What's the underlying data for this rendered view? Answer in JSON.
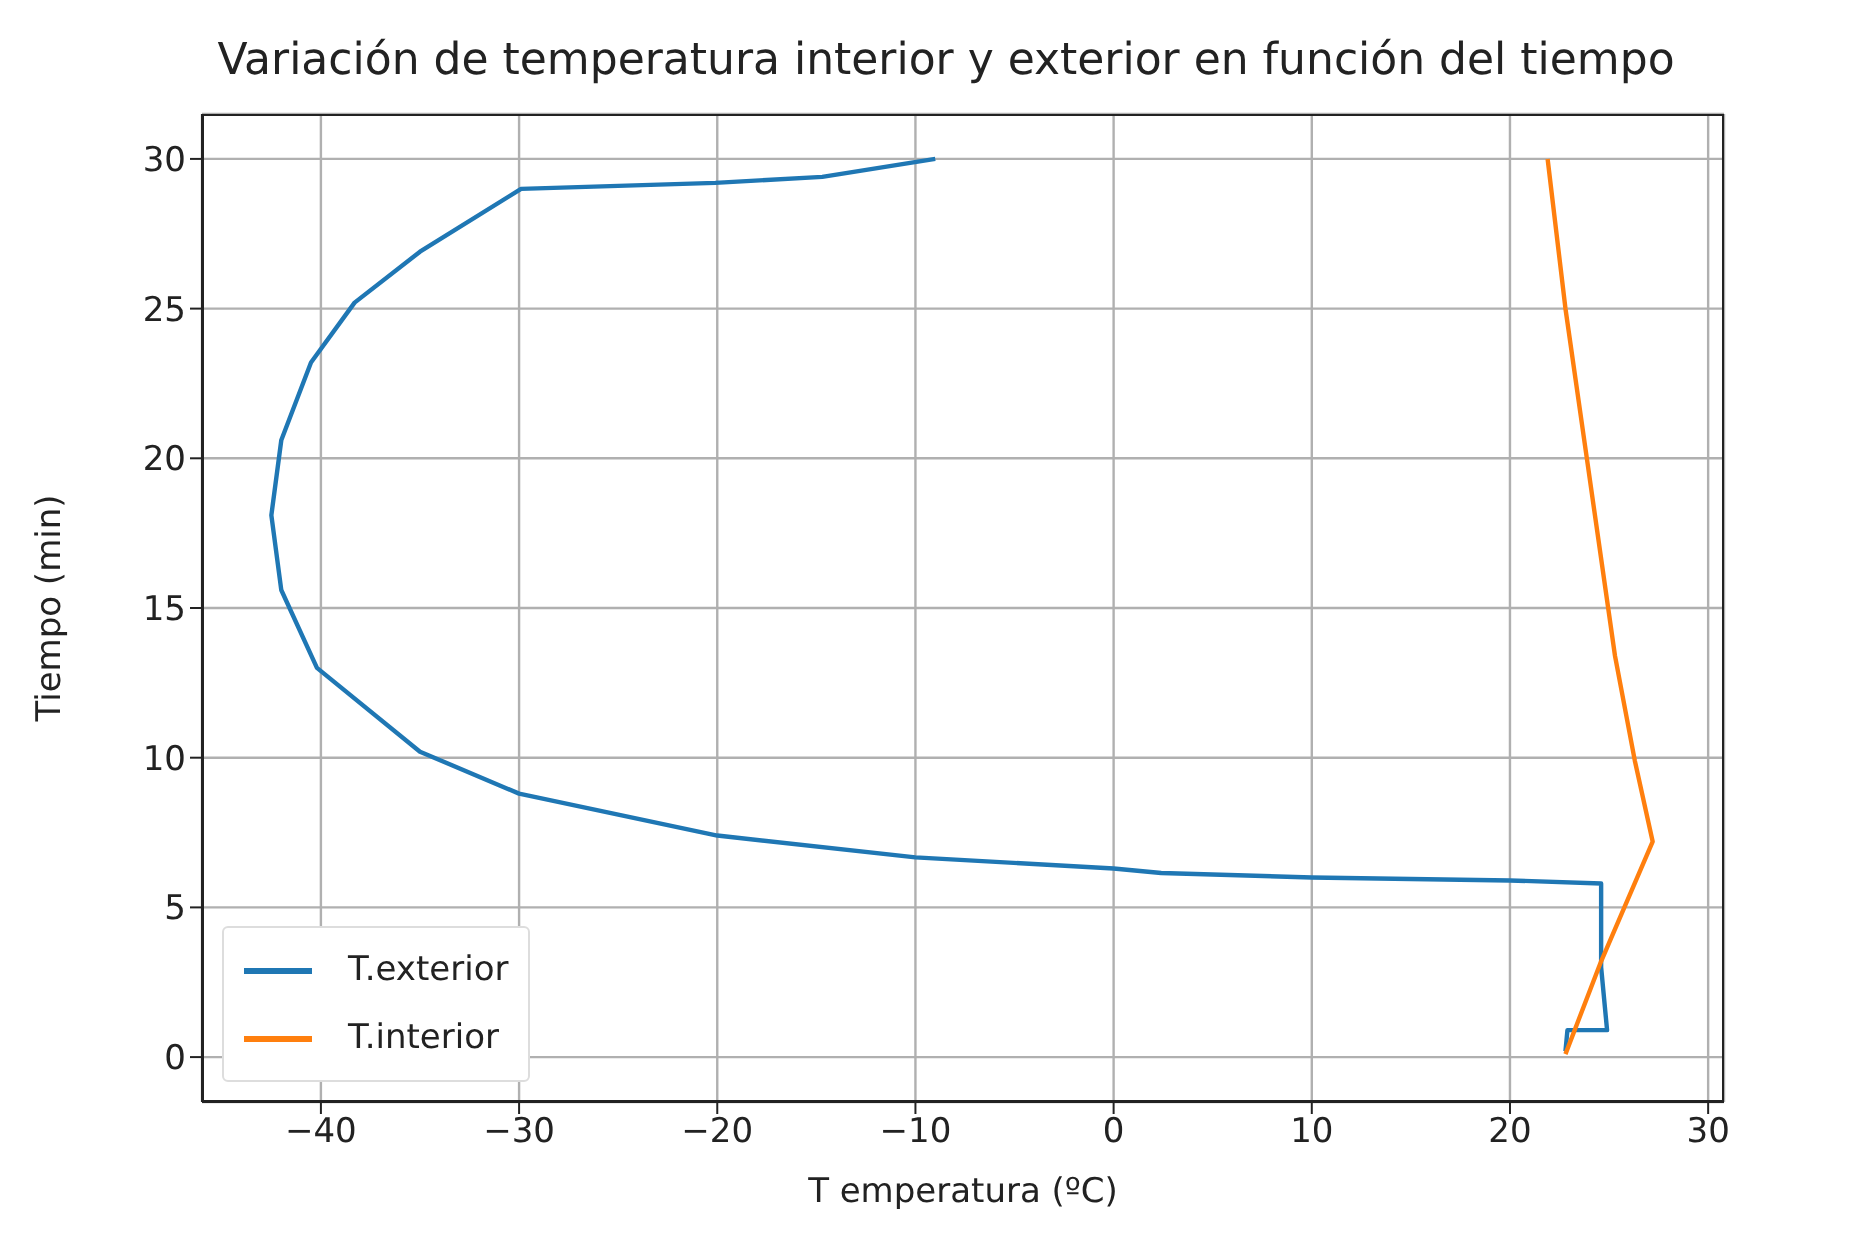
{
  "chart_data": {
    "type": "line",
    "title": "Variación de temperatura interior y exterior en función del tiempo",
    "xlabel": "T emperatura (ºC)",
    "ylabel": "Tiempo (min)",
    "xlim": [
      -46,
      30.8
    ],
    "xticks": [
      -40,
      -30,
      -20,
      -10,
      0,
      10,
      20,
      30
    ],
    "ylim": [
      -1.5,
      31.5
    ],
    "yticks": [
      0,
      5,
      10,
      15,
      20,
      25,
      30
    ],
    "grid": true,
    "legend": "bottom left",
    "marker": "none",
    "line_style": "solid",
    "series": [
      {
        "name": "T.exterior",
        "color": "#1f77b4",
        "x": [
          22.8,
          22.9,
          24.9,
          24.6,
          24.6,
          20,
          10,
          2.4,
          0,
          -10,
          -20,
          -30,
          -35,
          -40.2,
          -42.0,
          -42.5,
          -42.0,
          -40.5,
          -38.3,
          -35,
          -29.9,
          -20.1,
          -14.7,
          -9.0
        ],
        "values": [
          0.2,
          0.9,
          0.9,
          3.0,
          5.8,
          5.9,
          6.0,
          6.15,
          6.3,
          6.67,
          7.4,
          8.8,
          10.2,
          13.0,
          15.6,
          18.1,
          20.6,
          23.2,
          25.2,
          26.9,
          29.0,
          29.2,
          29.4,
          30.0
        ]
      },
      {
        "name": "T.interior",
        "color": "#ff7f0e",
        "x": [
          22.8,
          24.6,
          27.2,
          26.3,
          25.3,
          23.9,
          22.8,
          21.9
        ],
        "values": [
          0.1,
          3.2,
          7.2,
          9.9,
          13.4,
          19.9,
          25.0,
          30.0
        ]
      }
    ]
  }
}
